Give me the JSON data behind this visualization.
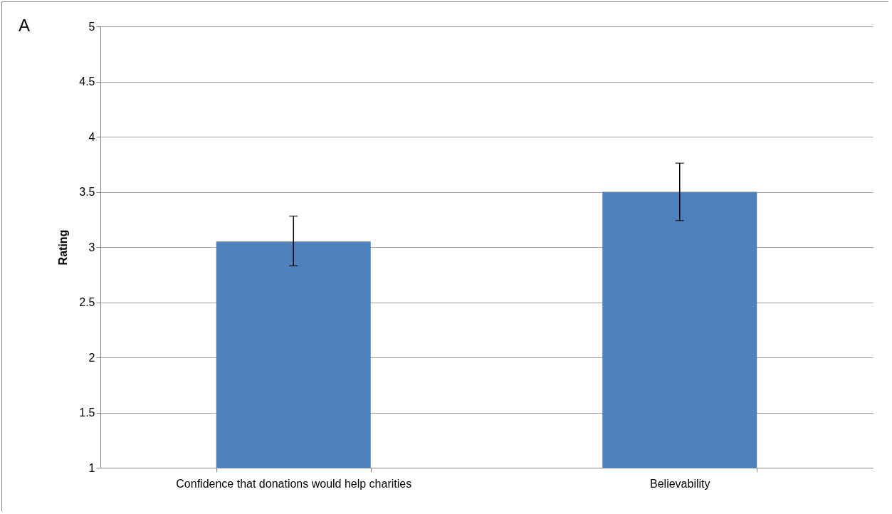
{
  "chart_data": {
    "type": "bar",
    "ylabel": "Rating",
    "categories": [
      "Confidence that donations would help charities",
      "Believability"
    ],
    "values": [
      3.05,
      3.5
    ],
    "errors": [
      [
        2.83,
        3.28
      ],
      [
        3.24,
        3.76
      ]
    ],
    "color": "#4f81bd",
    "ylim": [
      1,
      5
    ],
    "yticks": [
      1,
      1.5,
      2,
      2.5,
      3,
      3.5,
      4,
      4.5,
      5
    ],
    "grid": "y",
    "annotations": [
      "A"
    ]
  }
}
